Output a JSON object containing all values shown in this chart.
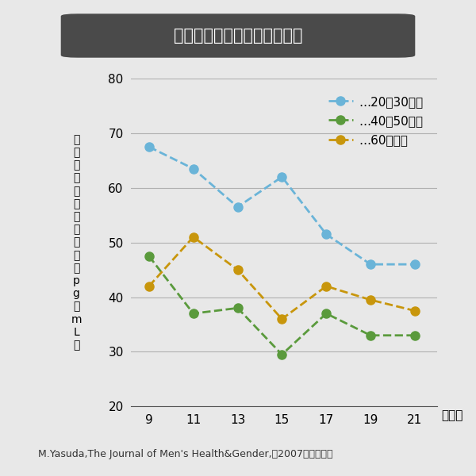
{
  "title": "年代別、テストステロンの量",
  "background_color": "#e8e8e8",
  "plot_bg_color": "#e8e8e8",
  "x_values": [
    9,
    11,
    13,
    15,
    17,
    19,
    21
  ],
  "series": [
    {
      "label": "…20〜30歳代",
      "color": "#6ab4d8",
      "values": [
        67.5,
        63.5,
        56.5,
        62.0,
        51.5,
        46.0,
        46.0
      ]
    },
    {
      "label": "…40〜50歳代",
      "color": "#5a9a3c",
      "values": [
        47.5,
        37.0,
        38.0,
        29.5,
        37.0,
        33.0,
        33.0
      ]
    },
    {
      "label": "…60歳以上",
      "color": "#c8960c",
      "values": [
        42.0,
        51.0,
        45.0,
        36.0,
        42.0,
        39.5,
        37.5
      ]
    }
  ],
  "xlabel": "（時）",
  "ylabel": "唾\n液\n中\nテ\nス\nト\nス\nテ\nロ\nン\n（\np\ng\n／\nm\nL\n）",
  "ylim": [
    20,
    80
  ],
  "yticks": [
    20,
    30,
    40,
    50,
    60,
    70,
    80
  ],
  "xticks": [
    9,
    11,
    13,
    15,
    17,
    19,
    21
  ],
  "footnote": "M.Yasuda,The Journal of Men's Health&Gender,（2007）より改変",
  "title_box_color": "#4a4a4a",
  "title_text_color": "#ffffff",
  "marker_size": 8,
  "line_width": 2
}
